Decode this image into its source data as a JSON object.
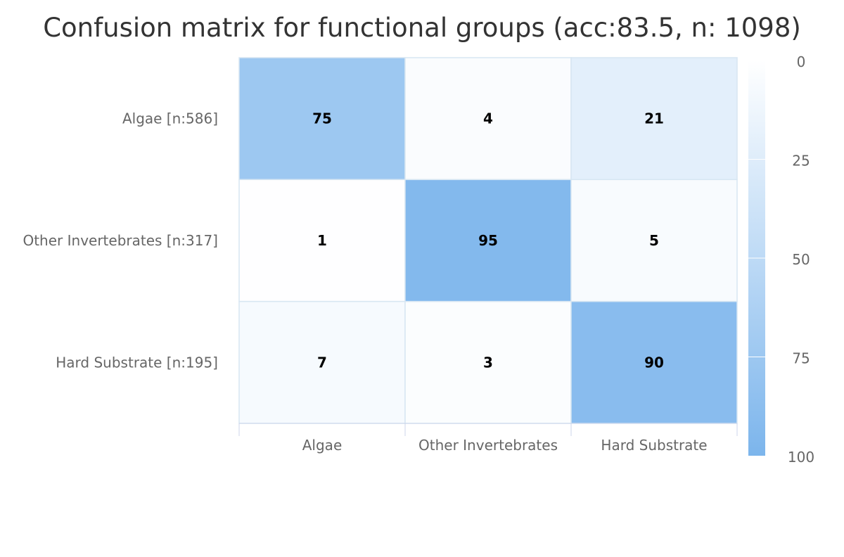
{
  "chart_data": {
    "type": "heatmap",
    "title": "Confusion matrix for functional groups (acc:83.5, n: 1098)",
    "rows": [
      "Algae [n:586]",
      "Other Invertebrates [n:317]",
      "Hard Substrate [n:195]"
    ],
    "columns": [
      "Algae",
      "Other Invertebrates",
      "Hard Substrate"
    ],
    "values": [
      [
        75,
        4,
        21
      ],
      [
        1,
        95,
        5
      ],
      [
        7,
        3,
        90
      ]
    ],
    "color_axis": {
      "min": 0,
      "max": 100,
      "ticks": [
        "0",
        "25",
        "50",
        "75",
        "100"
      ],
      "min_color": "#ffffff",
      "max_color": "#7cb5ec"
    },
    "legend_placement": "right"
  }
}
